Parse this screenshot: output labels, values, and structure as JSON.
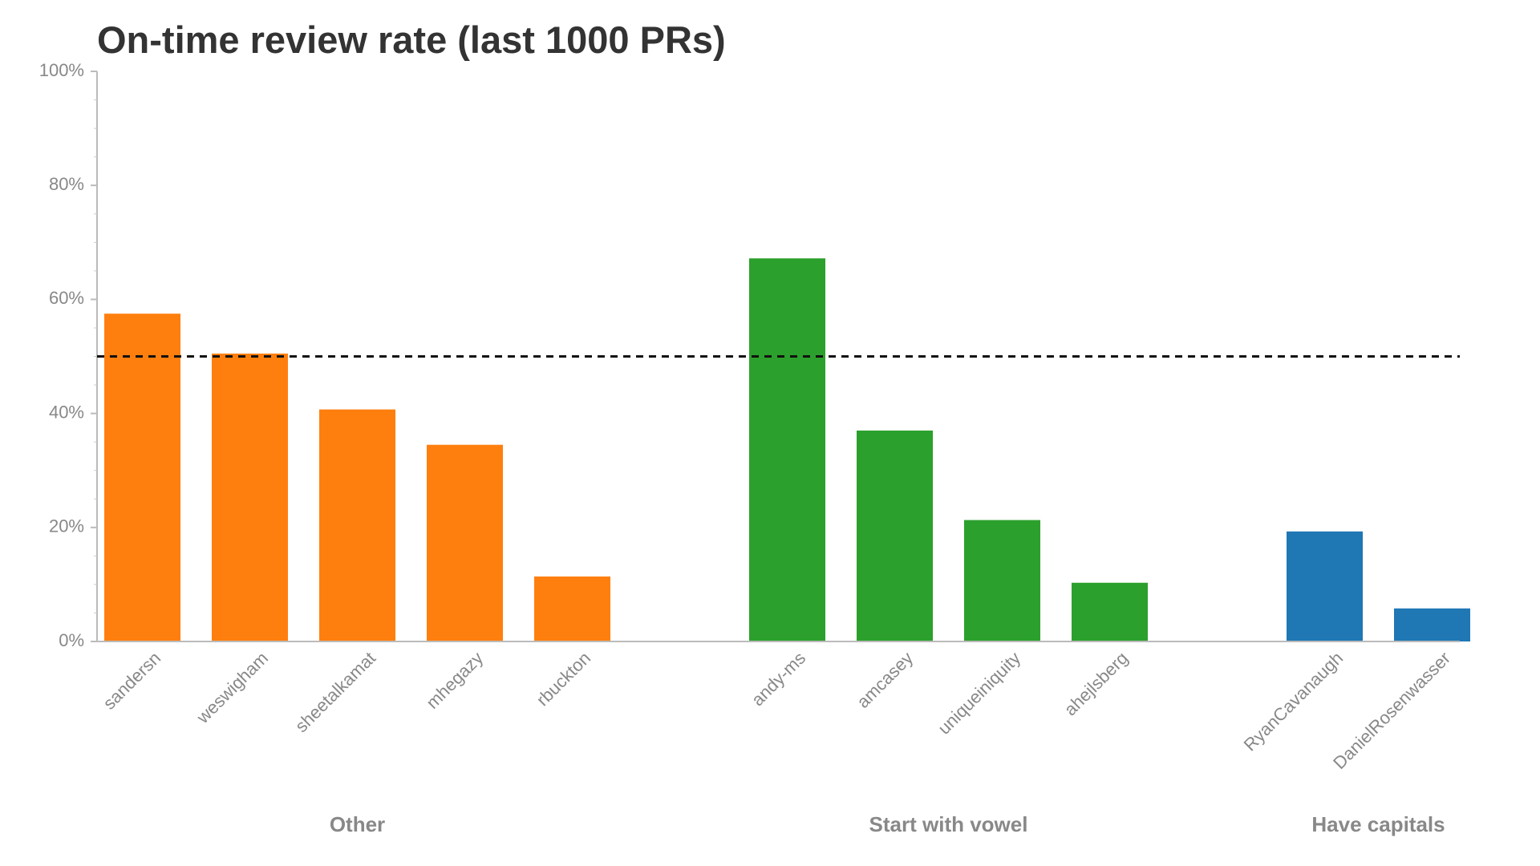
{
  "chart_data": {
    "type": "bar",
    "title": "On-time review rate (last 1000 PRs)",
    "xlabel": "",
    "ylabel": "",
    "ylim": [
      0,
      100
    ],
    "y_ticks": [
      "0%",
      "20%",
      "40%",
      "60%",
      "80%",
      "100%"
    ],
    "y_tick_values": [
      0,
      20,
      40,
      60,
      80,
      100
    ],
    "reference_line": 50,
    "grid": false,
    "groups": [
      {
        "name": "Other",
        "color": "#ff7f0e",
        "categories": [
          "sandersn",
          "weswigham",
          "sheetalkamat",
          "mhegazy",
          "rbuckton"
        ],
        "values": [
          57.5,
          50.5,
          40.7,
          34.5,
          11.4
        ]
      },
      {
        "name": "Start with vowel",
        "color": "#2ca02c",
        "categories": [
          "andy-ms",
          "amcasey",
          "uniqueiniquity",
          "ahejlsberg"
        ],
        "values": [
          67.2,
          37.0,
          21.3,
          10.3
        ]
      },
      {
        "name": "Have capitals",
        "color": "#1f77b4",
        "categories": [
          "RyanCavanaugh",
          "DanielRosenwasser"
        ],
        "values": [
          19.3,
          5.8
        ]
      }
    ]
  }
}
